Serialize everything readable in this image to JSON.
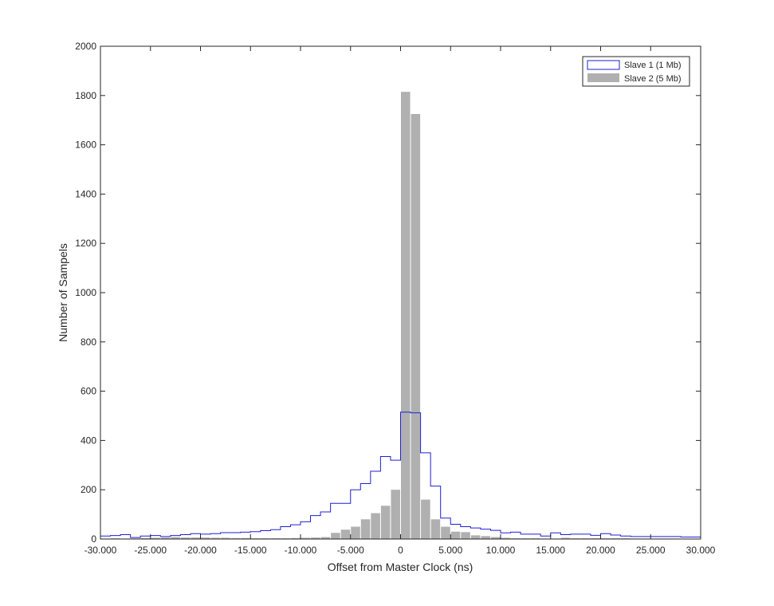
{
  "chart_data": {
    "type": "bar",
    "xlabel": "Offset from Master Clock (ns)",
    "ylabel": "Number of Sampels",
    "xlim": [
      -30000,
      30000
    ],
    "ylim": [
      0,
      2000
    ],
    "x_tick_values": [
      -30000,
      -25000,
      -20000,
      -15000,
      -10000,
      -5000,
      0,
      5000,
      10000,
      15000,
      20000,
      25000,
      30000
    ],
    "x_tick_labels": [
      "-30.000",
      "-25.000",
      "-20.000",
      "-15.000",
      "-10.000",
      "-5.000",
      "0",
      "5.000",
      "10.000",
      "15.000",
      "20.000",
      "25.000",
      "30.000"
    ],
    "y_tick_values": [
      0,
      200,
      400,
      600,
      800,
      1000,
      1200,
      1400,
      1600,
      1800,
      2000
    ],
    "y_tick_labels": [
      "0",
      "200",
      "400",
      "600",
      "800",
      "1000",
      "1200",
      "1400",
      "1600",
      "1800",
      "2000"
    ],
    "bin_width": 1000,
    "grid": false,
    "legend_position": "top-right",
    "series": [
      {
        "name": "Slave 1 (1 Mb)",
        "style": "stairs",
        "color": "#1f1fd6",
        "bin_starts": [
          -30000,
          -29000,
          -28000,
          -27000,
          -26000,
          -25000,
          -24000,
          -23000,
          -22000,
          -21000,
          -20000,
          -19000,
          -18000,
          -17000,
          -16000,
          -15000,
          -14000,
          -13000,
          -12000,
          -11000,
          -10000,
          -9000,
          -8000,
          -7000,
          -6000,
          -5000,
          -4000,
          -3000,
          -2000,
          -1000,
          0,
          1000,
          2000,
          3000,
          4000,
          5000,
          6000,
          7000,
          8000,
          9000,
          10000,
          11000,
          12000,
          13000,
          14000,
          15000,
          16000,
          17000,
          18000,
          19000,
          20000,
          21000,
          22000,
          23000,
          24000,
          25000,
          26000,
          27000,
          28000,
          29000
        ],
        "values": [
          12,
          14,
          18,
          6,
          12,
          14,
          10,
          14,
          18,
          22,
          20,
          22,
          26,
          26,
          28,
          30,
          34,
          38,
          50,
          58,
          70,
          95,
          110,
          145,
          145,
          200,
          225,
          275,
          335,
          320,
          515,
          512,
          350,
          215,
          85,
          60,
          50,
          45,
          40,
          35,
          25,
          28,
          20,
          20,
          12,
          25,
          18,
          20,
          20,
          15,
          22,
          16,
          12,
          10,
          10,
          10,
          10,
          10,
          8,
          8
        ]
      },
      {
        "name": "Slave 2 (5 Mb)",
        "style": "bars",
        "color": "#b0b0b0",
        "bin_starts": [
          -30000,
          -29000,
          -28000,
          -27000,
          -26000,
          -25000,
          -24000,
          -23000,
          -22000,
          -21000,
          -20000,
          -19000,
          -18000,
          -17000,
          -16000,
          -15000,
          -14000,
          -13000,
          -12000,
          -11000,
          -10000,
          -9000,
          -8000,
          -7000,
          -6000,
          -5000,
          -4000,
          -3000,
          -2000,
          -1000,
          0,
          1000,
          2000,
          3000,
          4000,
          5000,
          6000,
          7000,
          8000,
          9000,
          10000,
          11000,
          12000,
          13000,
          14000,
          15000,
          16000,
          17000,
          18000,
          19000,
          20000,
          21000,
          22000,
          23000,
          24000,
          25000,
          26000,
          27000,
          28000,
          29000
        ],
        "values": [
          2,
          3,
          2,
          2,
          4,
          5,
          6,
          8,
          6,
          6,
          6,
          5,
          5,
          4,
          4,
          3,
          3,
          3,
          3,
          4,
          5,
          6,
          8,
          25,
          38,
          50,
          80,
          105,
          135,
          200,
          1815,
          1725,
          160,
          80,
          50,
          30,
          28,
          15,
          12,
          8,
          5,
          3,
          3,
          3,
          2,
          2,
          5,
          3,
          3,
          3,
          3,
          3,
          3,
          2,
          2,
          2,
          2,
          2,
          2,
          2
        ]
      }
    ]
  }
}
